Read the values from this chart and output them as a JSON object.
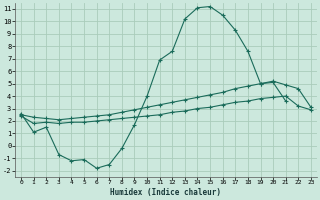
{
  "xlabel": "Humidex (Indice chaleur)",
  "background_color": "#cce8dd",
  "grid_color": "#aaccbb",
  "line_color": "#1a6b5a",
  "xlim": [
    -0.5,
    23.5
  ],
  "ylim": [
    -2.5,
    11.5
  ],
  "xticks": [
    0,
    1,
    2,
    3,
    4,
    5,
    6,
    7,
    8,
    9,
    10,
    11,
    12,
    13,
    14,
    15,
    16,
    17,
    18,
    19,
    20,
    21,
    22,
    23
  ],
  "yticks": [
    -2,
    -1,
    0,
    1,
    2,
    3,
    4,
    5,
    6,
    7,
    8,
    9,
    10,
    11
  ],
  "series1_x": [
    0,
    1,
    2,
    3,
    4,
    5,
    6,
    7,
    8,
    9,
    10,
    11,
    12,
    13,
    14,
    15,
    16,
    17,
    18,
    19,
    20,
    21
  ],
  "series1_y": [
    2.6,
    1.1,
    1.5,
    -0.7,
    -1.2,
    -1.1,
    -1.8,
    -1.5,
    -0.2,
    1.7,
    4.0,
    6.9,
    7.6,
    10.2,
    11.1,
    11.2,
    10.5,
    9.3,
    7.6,
    5.0,
    5.1,
    3.6
  ],
  "series2_x": [
    0,
    1,
    2,
    3,
    4,
    5,
    6,
    7,
    8,
    9,
    10,
    11,
    12,
    13,
    14,
    15,
    16,
    17,
    18,
    19,
    20,
    21,
    22,
    23
  ],
  "series2_y": [
    2.5,
    2.3,
    2.2,
    2.1,
    2.2,
    2.3,
    2.4,
    2.5,
    2.7,
    2.9,
    3.1,
    3.3,
    3.5,
    3.7,
    3.9,
    4.1,
    4.3,
    4.6,
    4.8,
    5.0,
    5.2,
    4.9,
    4.6,
    3.1
  ],
  "series3_x": [
    0,
    1,
    2,
    3,
    4,
    5,
    6,
    7,
    8,
    9,
    10,
    11,
    12,
    13,
    14,
    15,
    16,
    17,
    18,
    19,
    20,
    21,
    22,
    23
  ],
  "series3_y": [
    2.4,
    1.8,
    1.9,
    1.8,
    1.9,
    1.9,
    2.0,
    2.1,
    2.2,
    2.3,
    2.4,
    2.5,
    2.7,
    2.8,
    3.0,
    3.1,
    3.3,
    3.5,
    3.6,
    3.8,
    3.9,
    4.0,
    3.2,
    2.9
  ]
}
